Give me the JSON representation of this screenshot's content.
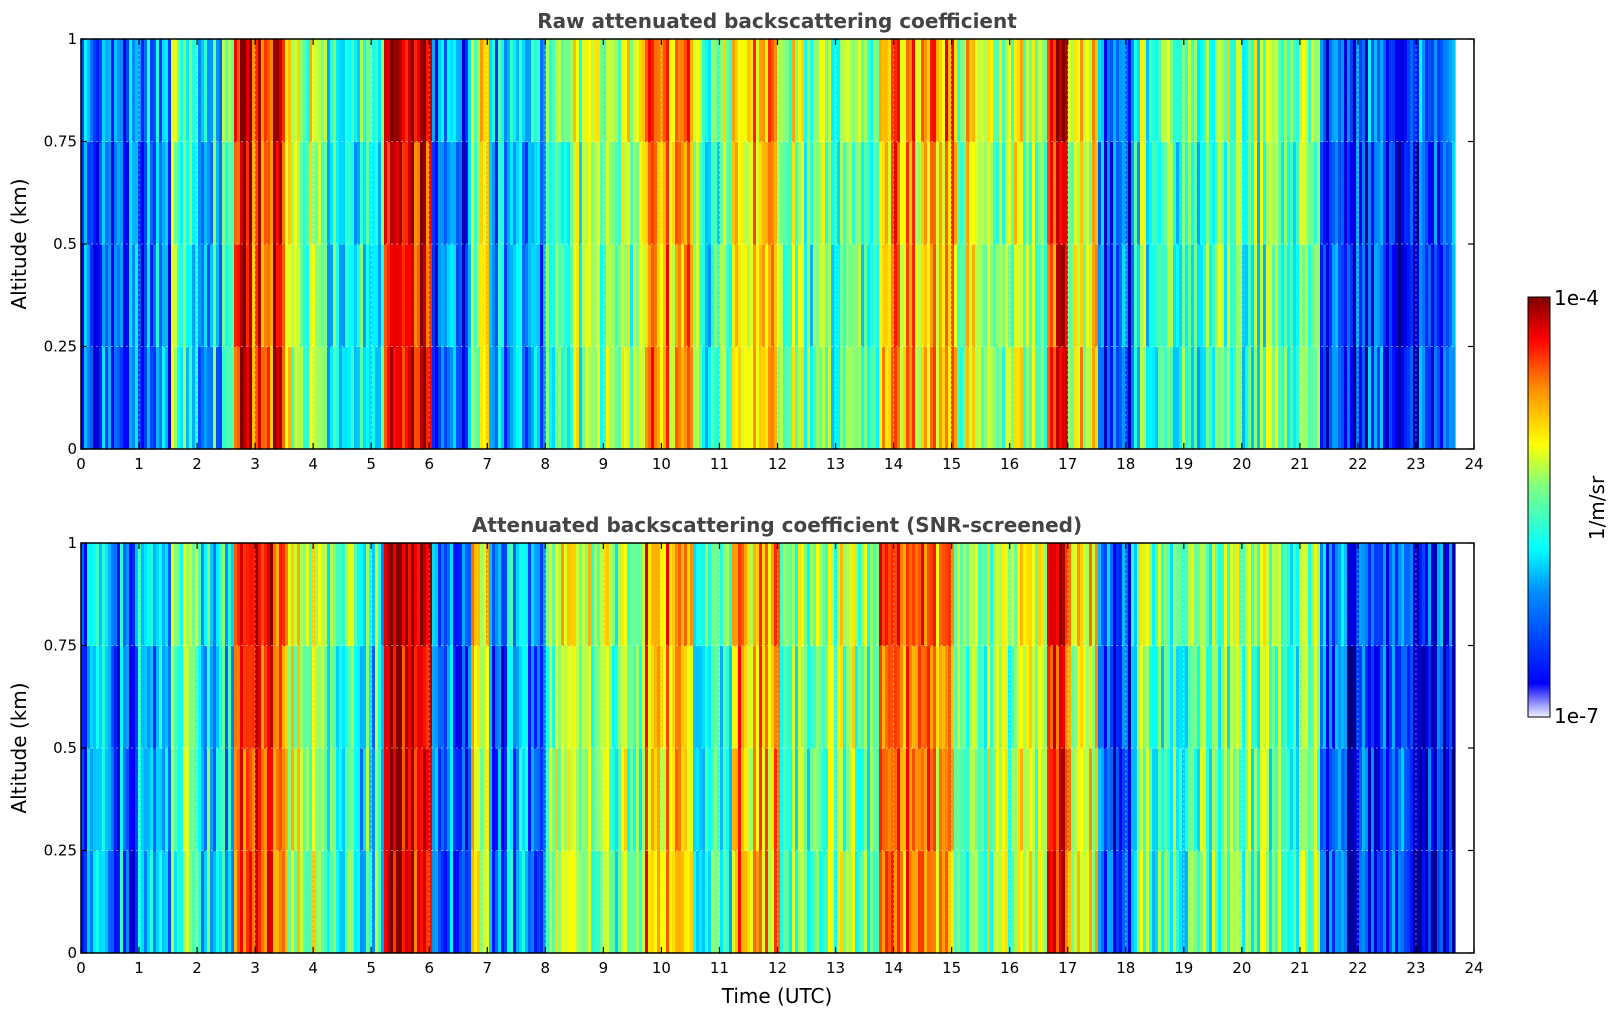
{
  "figure": {
    "xlabel": "Time (UTC)",
    "colorbar": {
      "label": "1/m/sr",
      "top_label": "1e-4",
      "bottom_label": "1e-7",
      "scale": "log",
      "range": [
        1e-07,
        0.0001
      ],
      "colormap": "jet"
    }
  },
  "chart_data": [
    {
      "type": "heatmap",
      "title": "Raw attenuated backscattering coefficient",
      "xlabel": "",
      "ylabel": "Altitude (km)",
      "xlim": [
        0,
        24
      ],
      "ylim": [
        0,
        1
      ],
      "xticks": [
        "0",
        "1",
        "2",
        "3",
        "4",
        "5",
        "6",
        "7",
        "8",
        "9",
        "10",
        "11",
        "12",
        "13",
        "14",
        "15",
        "16",
        "17",
        "18",
        "19",
        "20",
        "21",
        "22",
        "23",
        "24"
      ],
      "yticks": [
        "0",
        "0.25",
        "0.5",
        "0.75",
        "1"
      ],
      "grid": true,
      "data_extent_hours": [
        0,
        23.65
      ],
      "time_segments": [
        {
          "start": 0.0,
          "end": 1.5,
          "level": 0.22
        },
        {
          "start": 1.5,
          "end": 2.0,
          "level": 0.45
        },
        {
          "start": 2.0,
          "end": 2.6,
          "level": 0.35
        },
        {
          "start": 2.6,
          "end": 3.5,
          "level": 0.85
        },
        {
          "start": 3.5,
          "end": 4.2,
          "level": 0.55
        },
        {
          "start": 4.2,
          "end": 5.2,
          "level": 0.4
        },
        {
          "start": 5.2,
          "end": 6.0,
          "level": 0.92
        },
        {
          "start": 6.0,
          "end": 6.7,
          "level": 0.22
        },
        {
          "start": 6.7,
          "end": 7.0,
          "level": 0.55
        },
        {
          "start": 7.0,
          "end": 8.0,
          "level": 0.25
        },
        {
          "start": 8.0,
          "end": 9.7,
          "level": 0.5
        },
        {
          "start": 9.7,
          "end": 10.5,
          "level": 0.72
        },
        {
          "start": 10.5,
          "end": 11.2,
          "level": 0.45
        },
        {
          "start": 11.2,
          "end": 12.0,
          "level": 0.68
        },
        {
          "start": 12.0,
          "end": 13.7,
          "level": 0.5
        },
        {
          "start": 13.7,
          "end": 15.0,
          "level": 0.72
        },
        {
          "start": 15.0,
          "end": 16.6,
          "level": 0.55
        },
        {
          "start": 16.6,
          "end": 17.0,
          "level": 0.85
        },
        {
          "start": 17.0,
          "end": 17.5,
          "level": 0.6
        },
        {
          "start": 17.5,
          "end": 18.1,
          "level": 0.18
        },
        {
          "start": 18.1,
          "end": 21.3,
          "level": 0.45
        },
        {
          "start": 21.3,
          "end": 23.65,
          "level": 0.15
        }
      ]
    },
    {
      "type": "heatmap",
      "title": "Attenuated backscattering coefficient (SNR-screened)",
      "xlabel": "Time (UTC)",
      "ylabel": "Altitude (km)",
      "xlim": [
        0,
        24
      ],
      "ylim": [
        0,
        1
      ],
      "xticks": [
        "0",
        "1",
        "2",
        "3",
        "4",
        "5",
        "6",
        "7",
        "8",
        "9",
        "10",
        "11",
        "12",
        "13",
        "14",
        "15",
        "16",
        "17",
        "18",
        "19",
        "20",
        "21",
        "22",
        "23",
        "24"
      ],
      "yticks": [
        "0",
        "0.25",
        "0.5",
        "0.75",
        "1"
      ],
      "grid": true,
      "data_extent_hours": [
        0,
        23.65
      ],
      "time_segments": [
        {
          "start": 0.0,
          "end": 1.5,
          "level": 0.25
        },
        {
          "start": 1.5,
          "end": 2.0,
          "level": 0.45
        },
        {
          "start": 2.0,
          "end": 2.6,
          "level": 0.35
        },
        {
          "start": 2.6,
          "end": 3.5,
          "level": 0.85
        },
        {
          "start": 3.5,
          "end": 4.2,
          "level": 0.55
        },
        {
          "start": 4.2,
          "end": 5.2,
          "level": 0.4
        },
        {
          "start": 5.2,
          "end": 6.0,
          "level": 0.92
        },
        {
          "start": 6.0,
          "end": 6.7,
          "level": 0.22
        },
        {
          "start": 6.7,
          "end": 7.0,
          "level": 0.55
        },
        {
          "start": 7.0,
          "end": 8.0,
          "level": 0.25
        },
        {
          "start": 8.0,
          "end": 9.7,
          "level": 0.5
        },
        {
          "start": 9.7,
          "end": 10.5,
          "level": 0.72
        },
        {
          "start": 10.5,
          "end": 11.2,
          "level": 0.45
        },
        {
          "start": 11.2,
          "end": 12.0,
          "level": 0.68
        },
        {
          "start": 12.0,
          "end": 13.7,
          "level": 0.5
        },
        {
          "start": 13.7,
          "end": 15.0,
          "level": 0.72
        },
        {
          "start": 15.0,
          "end": 16.6,
          "level": 0.55
        },
        {
          "start": 16.6,
          "end": 17.0,
          "level": 0.85
        },
        {
          "start": 17.0,
          "end": 17.5,
          "level": 0.6
        },
        {
          "start": 17.5,
          "end": 18.1,
          "level": 0.18
        },
        {
          "start": 18.1,
          "end": 21.3,
          "level": 0.45
        },
        {
          "start": 21.3,
          "end": 23.65,
          "level": 0.15
        }
      ]
    }
  ]
}
